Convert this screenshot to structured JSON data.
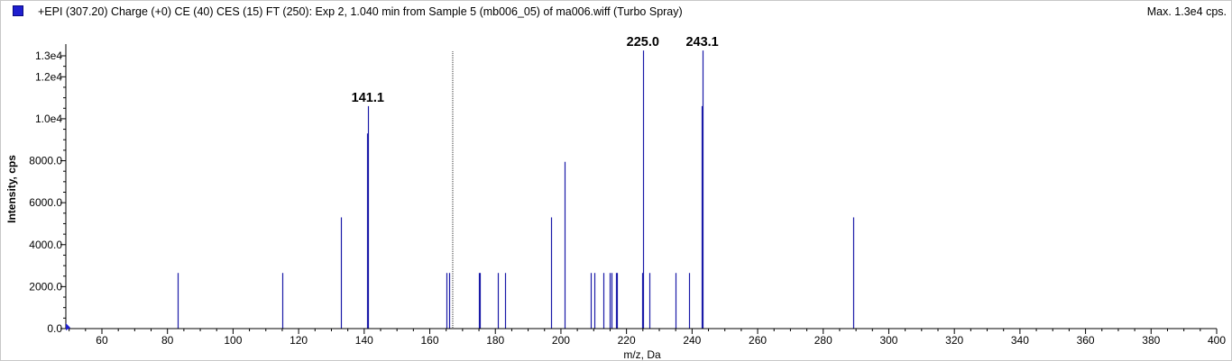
{
  "header": {
    "title": "+EPI (307.20) Charge (+0) CE (40) CES (15) FT (250): Exp 2, 1.040 min from Sample 5 (mb006_05) of ma006.wiff (Turbo Spray)",
    "max_label": "Max. 1.3e4 cps."
  },
  "colors": {
    "series": "#1a1aa8",
    "axis": "#000000",
    "cursor": "#333333"
  },
  "chart_data": {
    "type": "bar",
    "xlabel": "m/z, Da",
    "ylabel": "Intensity, cps",
    "xlim": [
      49,
      400
    ],
    "ylim": [
      0,
      13300
    ],
    "x_ticks": [
      60,
      80,
      100,
      120,
      140,
      160,
      180,
      200,
      220,
      240,
      260,
      280,
      300,
      320,
      340,
      360,
      380,
      400
    ],
    "x_tick_labels": [
      "60",
      "80",
      "100",
      "120",
      "140",
      "160",
      "180",
      "200",
      "220",
      "240",
      "260",
      "280",
      "300",
      "320",
      "340",
      "360",
      "380",
      "400"
    ],
    "y_ticks": [
      0,
      2000,
      4000,
      6000,
      8000,
      10000,
      12000,
      13000
    ],
    "y_tick_labels": [
      "0.0",
      "2000.0",
      "4000.0",
      "6000.0",
      "8000.0",
      "1.0e4",
      "1.2e4",
      "1.3e4"
    ],
    "peaks": [
      {
        "x": 83.1,
        "y": 2650
      },
      {
        "x": 115.0,
        "y": 2650
      },
      {
        "x": 133.0,
        "y": 5300
      },
      {
        "x": 140.9,
        "y": 9300
      },
      {
        "x": 141.1,
        "y": 10600
      },
      {
        "x": 165.1,
        "y": 2650
      },
      {
        "x": 166.0,
        "y": 2650
      },
      {
        "x": 175.0,
        "y": 2650
      },
      {
        "x": 175.3,
        "y": 2650
      },
      {
        "x": 180.9,
        "y": 2650
      },
      {
        "x": 183.0,
        "y": 2650
      },
      {
        "x": 197.1,
        "y": 5300
      },
      {
        "x": 201.1,
        "y": 7950
      },
      {
        "x": 209.0,
        "y": 2650
      },
      {
        "x": 210.1,
        "y": 2650
      },
      {
        "x": 213.0,
        "y": 2650
      },
      {
        "x": 215.0,
        "y": 2650
      },
      {
        "x": 215.3,
        "y": 2650
      },
      {
        "x": 216.8,
        "y": 2650
      },
      {
        "x": 217.1,
        "y": 2650
      },
      {
        "x": 224.8,
        "y": 2650
      },
      {
        "x": 225.0,
        "y": 13250
      },
      {
        "x": 227.0,
        "y": 2650
      },
      {
        "x": 235.0,
        "y": 2650
      },
      {
        "x": 239.1,
        "y": 2650
      },
      {
        "x": 242.9,
        "y": 10600
      },
      {
        "x": 243.1,
        "y": 13250
      },
      {
        "x": 289.2,
        "y": 5300
      }
    ],
    "peak_labels": [
      {
        "x": 141.1,
        "y": 10600,
        "text": "141.1"
      },
      {
        "x": 225.0,
        "y": 13250,
        "text": "225.0"
      },
      {
        "x": 243.1,
        "y": 13250,
        "text": "243.1"
      }
    ],
    "cursor_x": 167.0
  }
}
